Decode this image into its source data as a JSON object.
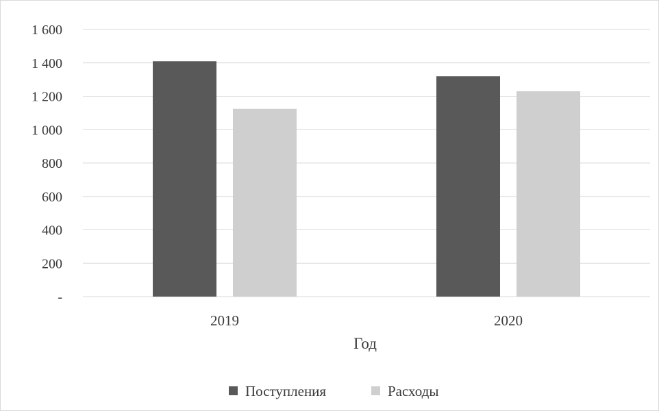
{
  "chart_data": {
    "type": "bar",
    "categories": [
      "2019",
      "2020"
    ],
    "series": [
      {
        "name": "Поступления",
        "values": [
          1410,
          1320
        ],
        "color": "#595959"
      },
      {
        "name": "Расходы",
        "values": [
          1125,
          1230
        ],
        "color": "#d0cfcf"
      }
    ],
    "ylim": [
      0,
      1600
    ],
    "yticks": [
      {
        "value": 0,
        "label": "-"
      },
      {
        "value": 200,
        "label": "200"
      },
      {
        "value": 400,
        "label": "400"
      },
      {
        "value": 600,
        "label": "600"
      },
      {
        "value": 800,
        "label": "800"
      },
      {
        "value": 1000,
        "label": "1 000"
      },
      {
        "value": 1200,
        "label": "1 200"
      },
      {
        "value": 1400,
        "label": "1 400"
      },
      {
        "value": 1600,
        "label": "1 600"
      }
    ],
    "title": "",
    "xlabel": "Год",
    "ylabel": "",
    "grid": true,
    "legend_position": "bottom",
    "gridline_color": "#d9d9d9"
  }
}
